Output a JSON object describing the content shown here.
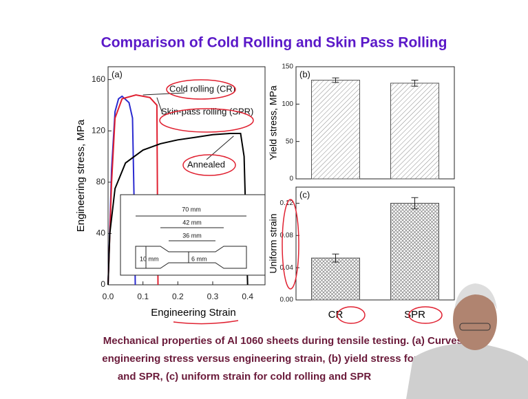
{
  "title": "Comparison of Cold Rolling and Skin Pass Rolling",
  "caption": [
    "Mechanical properties of Al 1060 sheets during tensile testing. (a) Curves of",
    "engineering stress versus engineering strain, (b) yield stress for cold rolling",
    "and SPR, (c) uniform strain for cold rolling and SPR"
  ],
  "chart_data": [
    {
      "type": "line",
      "panel": "(a)",
      "x_label": "Engineering Strain",
      "y_label": "Engineering stress, MPa",
      "xlim": [
        0,
        0.45
      ],
      "ylim": [
        0,
        170
      ],
      "xticks": [
        {
          "value": 0,
          "label": "0.0"
        },
        0.1,
        0.2,
        0.3,
        0.4
      ],
      "yticks": [
        0,
        40,
        80,
        120,
        160
      ],
      "series": [
        {
          "name": "Cold rolling (CR)",
          "color": "#2a2ad0",
          "x": [
            0,
            0.01,
            0.02,
            0.03,
            0.04,
            0.06,
            0.07,
            0.075,
            0.078
          ],
          "values": [
            0,
            90,
            135,
            145,
            147,
            142,
            130,
            60,
            0
          ]
        },
        {
          "name": "Skin-pass rolling (SPR)",
          "color": "#e02030",
          "x": [
            0,
            0.01,
            0.02,
            0.04,
            0.08,
            0.12,
            0.14,
            0.143
          ],
          "values": [
            0,
            80,
            130,
            145,
            148,
            146,
            140,
            0
          ]
        },
        {
          "name": "Annealed",
          "color": "#000000",
          "x": [
            0,
            0.005,
            0.02,
            0.05,
            0.1,
            0.15,
            0.2,
            0.25,
            0.3,
            0.35,
            0.38,
            0.39,
            0.4
          ],
          "values": [
            0,
            40,
            75,
            95,
            105,
            110,
            113,
            115,
            117,
            118,
            118,
            100,
            0
          ]
        }
      ],
      "inset_labels": [
        "70 mm",
        "42 mm",
        "36 mm",
        "10 mm",
        "6 mm"
      ]
    },
    {
      "type": "bar",
      "panel": "(b)",
      "y_label": "Yield stress, MPa",
      "ylim": [
        0,
        150
      ],
      "yticks": [
        0,
        50,
        100,
        150
      ],
      "values": [
        132,
        128
      ],
      "errors": [
        3,
        4
      ]
    },
    {
      "type": "bar",
      "panel": "(c)",
      "y_label": "Uniform strain",
      "categories": [
        "CR",
        "SPR"
      ],
      "ylim": [
        0,
        0.14
      ],
      "yticks": [
        {
          "value": 0,
          "label": "0.00"
        },
        {
          "value": 0.04,
          "label": "0.04"
        },
        {
          "value": 0.08,
          "label": "0.08"
        },
        {
          "value": 0.12,
          "label": "0.12"
        }
      ],
      "values": [
        0.052,
        0.12
      ],
      "errors": [
        0.005,
        0.007
      ]
    }
  ]
}
